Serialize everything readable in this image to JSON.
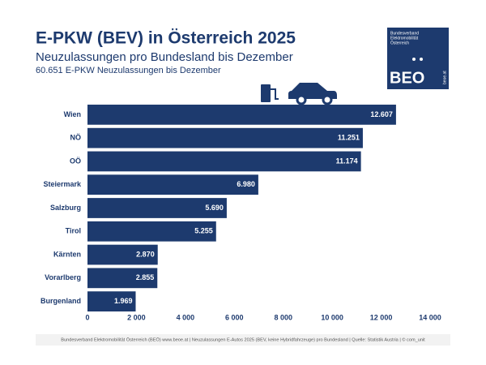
{
  "chart_data": {
    "type": "hbar",
    "title": "E-PKW (BEV) in Österreich 2025",
    "subtitle": "Neuzulassungen pro Bundesland bis Dezember",
    "note": "60.651 E-PKW Neuzulassungen bis Dezember",
    "categories": [
      "Wien",
      "NÖ",
      "OÖ",
      "Steiermark",
      "Salzburg",
      "Tirol",
      "Kärnten",
      "Vorarlberg",
      "Burgenland"
    ],
    "values": [
      12607,
      11251,
      11174,
      6980,
      5690,
      5255,
      2870,
      2855,
      1969
    ],
    "value_labels": [
      "12.607",
      "11.251",
      "11.174",
      "6.980",
      "5.690",
      "5.255",
      "2.870",
      "2.855",
      "1.969"
    ],
    "color": "#1d3a6e",
    "xlim": [
      0,
      14000
    ],
    "xticks": [
      0,
      {
        "value": 2000,
        "label": "2 000"
      },
      {
        "value": 4000,
        "label": "4 000"
      },
      {
        "value": 6000,
        "label": "6 000"
      },
      {
        "value": 8000,
        "label": "8 000"
      },
      {
        "value": 10000,
        "label": "10 000"
      },
      {
        "value": 12000,
        "label": "12 000"
      },
      {
        "value": 14000,
        "label": "14 000"
      }
    ],
    "grid": false
  },
  "logo": {
    "lines": [
      "Bundesverband",
      "Elektromobilität",
      "Österreich"
    ],
    "mark": "BEO",
    "url": "beoe.at"
  },
  "footer": "Bundesverband Elektromobilität Österreich (BEÖ) www.beoe.at | Neuzulassungen E-Autos 2025 (BEV, keine Hybridfahrzeuge) pro Bundesland | Quelle: Statistik Austria | © com_unit"
}
